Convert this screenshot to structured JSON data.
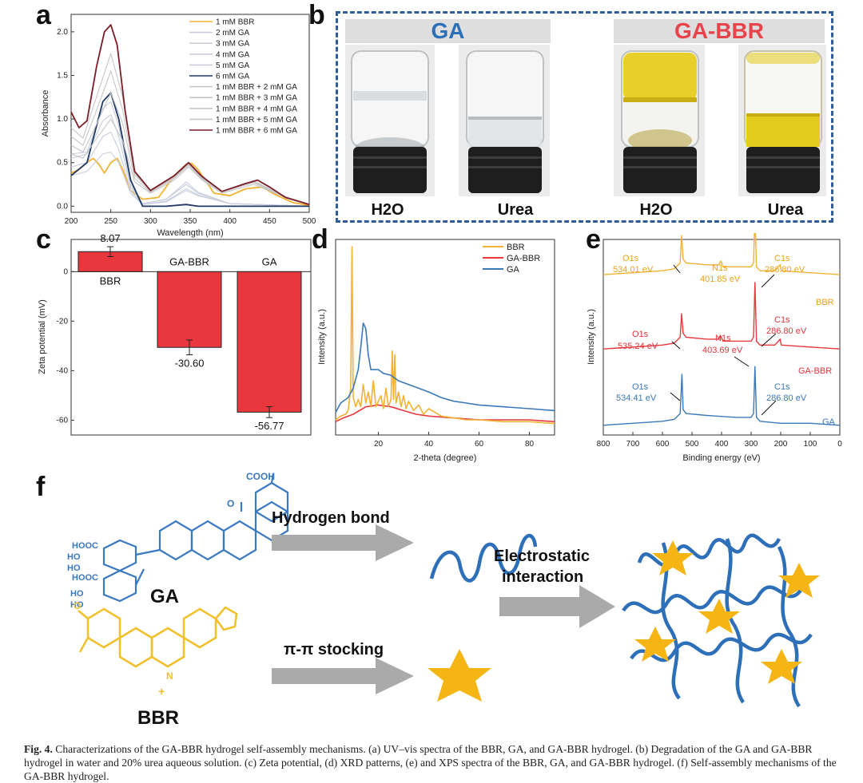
{
  "figure": {
    "caption_head": "Fig. 4.",
    "caption_text": " Characterizations of the GA-BBR hydrogel self-assembly mechanisms. (a) UV–vis spectra of the BBR, GA, and GA-BBR hydrogel. (b) Degradation of the GA and GA-BBR hydrogel in water and 20% urea aqueous solution. (c) Zeta potential, (d) XRD patterns, (e) and XPS spectra of the BBR, GA, and GA-BBR hydrogel. (f) Self-assembly mechanisms of the GA-BBR hydrogel."
  },
  "panels": {
    "a": {
      "label": "a"
    },
    "b": {
      "label": "b"
    },
    "c": {
      "label": "c"
    },
    "d": {
      "label": "d"
    },
    "e": {
      "label": "e"
    },
    "f": {
      "label": "f"
    }
  },
  "chart_data": [
    {
      "id": "a",
      "type": "line",
      "xlabel": "Wavelength (nm)",
      "ylabel": "Absorbance",
      "xlim": [
        200,
        500
      ],
      "ylim": [
        -0.07,
        2.2
      ],
      "xticks": [
        200,
        250,
        300,
        350,
        400,
        450,
        500
      ],
      "yticks": [
        0.0,
        0.5,
        1.0,
        1.5,
        2.0
      ],
      "yticklabels": [
        "0.0",
        "0.5",
        "1.0",
        "1.5",
        "2.0"
      ],
      "series": [
        {
          "name": "1 mM BBR",
          "color": "#f2b233"
        },
        {
          "name": "2 mM GA",
          "color": "#c9cedd"
        },
        {
          "name": "3 mM GA",
          "color": "#c9cedd"
        },
        {
          "name": "4 mM GA",
          "color": "#c9cedd"
        },
        {
          "name": "5 mM GA",
          "color": "#c9cedd"
        },
        {
          "name": "6 mM GA",
          "color": "#1f3864"
        },
        {
          "name": "1 mM BBR + 2 mM GA",
          "color": "#c7c7c7"
        },
        {
          "name": "1 mM BBR + 3 mM GA",
          "color": "#c7c7c7"
        },
        {
          "name": "1 mM BBR + 4 mM GA",
          "color": "#c7c7c7"
        },
        {
          "name": "1 mM BBR + 5 mM GA",
          "color": "#c7c7c7"
        },
        {
          "name": "1 mM BBR + 6 mM GA",
          "color": "#7b1c26"
        }
      ],
      "curves": [
        {
          "color": "#f2b233",
          "x": [
            200,
            210,
            220,
            228,
            235,
            242,
            250,
            258,
            265,
            275,
            290,
            310,
            330,
            345,
            352,
            360,
            380,
            400,
            420,
            440,
            460,
            480,
            500
          ],
          "y": [
            0.38,
            0.42,
            0.5,
            0.55,
            0.48,
            0.38,
            0.5,
            0.55,
            0.42,
            0.18,
            0.08,
            0.1,
            0.35,
            0.48,
            0.49,
            0.42,
            0.15,
            0.12,
            0.2,
            0.22,
            0.12,
            0.04,
            0.01
          ]
        },
        {
          "color": "#c9cedd",
          "x": [
            200,
            220,
            240,
            250,
            260,
            275,
            290,
            320,
            345,
            360,
            400,
            500
          ],
          "y": [
            0.35,
            0.4,
            0.6,
            0.62,
            0.5,
            0.15,
            0.02,
            0.05,
            0.18,
            0.12,
            0.03,
            0.0
          ]
        },
        {
          "color": "#c9cedd",
          "x": [
            200,
            220,
            240,
            250,
            260,
            275,
            290,
            320,
            345,
            360,
            400,
            500
          ],
          "y": [
            0.45,
            0.5,
            0.8,
            0.85,
            0.65,
            0.18,
            0.02,
            0.06,
            0.2,
            0.13,
            0.03,
            0.0
          ]
        },
        {
          "color": "#c9cedd",
          "x": [
            200,
            220,
            240,
            250,
            260,
            275,
            290,
            320,
            345,
            360,
            400,
            500
          ],
          "y": [
            0.55,
            0.6,
            0.98,
            1.05,
            0.8,
            0.22,
            0.03,
            0.08,
            0.25,
            0.15,
            0.03,
            0.0
          ]
        },
        {
          "color": "#c9cedd",
          "x": [
            200,
            220,
            240,
            250,
            260,
            275,
            290,
            320,
            345,
            360,
            400,
            500
          ],
          "y": [
            0.6,
            0.62,
            1.12,
            1.2,
            0.92,
            0.25,
            0.03,
            0.08,
            0.28,
            0.16,
            0.03,
            0.0
          ]
        },
        {
          "color": "#1f3864",
          "x": [
            200,
            220,
            240,
            250,
            260,
            275,
            290,
            320,
            345,
            360,
            400,
            500
          ],
          "y": [
            0.35,
            0.5,
            1.2,
            1.3,
            1.0,
            0.3,
            0.0,
            0.0,
            0.02,
            0.0,
            0.0,
            0.0
          ]
        },
        {
          "color": "#c7c7c7",
          "x": [
            200,
            215,
            230,
            250,
            265,
            280,
            300,
            330,
            348,
            365,
            390,
            430,
            470,
            500
          ],
          "y": [
            0.6,
            0.55,
            0.75,
            1.0,
            0.75,
            0.28,
            0.15,
            0.3,
            0.45,
            0.3,
            0.15,
            0.25,
            0.1,
            0.02
          ]
        },
        {
          "color": "#c7c7c7",
          "x": [
            200,
            215,
            230,
            250,
            265,
            280,
            300,
            330,
            348,
            365,
            390,
            430,
            470,
            500
          ],
          "y": [
            0.7,
            0.62,
            0.9,
            1.3,
            0.95,
            0.32,
            0.16,
            0.32,
            0.47,
            0.31,
            0.16,
            0.27,
            0.1,
            0.02
          ]
        },
        {
          "color": "#c7c7c7",
          "x": [
            200,
            215,
            230,
            250,
            265,
            280,
            300,
            330,
            348,
            365,
            390,
            430,
            470,
            500
          ],
          "y": [
            0.8,
            0.7,
            1.05,
            1.55,
            1.1,
            0.36,
            0.17,
            0.33,
            0.48,
            0.32,
            0.17,
            0.28,
            0.11,
            0.02
          ]
        },
        {
          "color": "#c7c7c7",
          "x": [
            200,
            215,
            230,
            250,
            265,
            280,
            300,
            330,
            348,
            365,
            390,
            430,
            470,
            500
          ],
          "y": [
            0.9,
            0.78,
            1.2,
            1.75,
            1.25,
            0.38,
            0.18,
            0.34,
            0.49,
            0.33,
            0.17,
            0.29,
            0.11,
            0.02
          ]
        },
        {
          "color": "#7b1c26",
          "x": [
            200,
            210,
            220,
            232,
            242,
            250,
            258,
            268,
            280,
            300,
            330,
            348,
            365,
            390,
            420,
            435,
            450,
            470,
            500
          ],
          "y": [
            1.08,
            0.9,
            0.98,
            1.6,
            2.0,
            2.08,
            1.85,
            1.1,
            0.4,
            0.18,
            0.35,
            0.5,
            0.34,
            0.17,
            0.26,
            0.3,
            0.22,
            0.1,
            0.02
          ]
        }
      ]
    },
    {
      "id": "c",
      "type": "bar",
      "ylabel": "Zeta potential (mV)",
      "categories": [
        "BBR",
        "GA-BBR",
        "GA"
      ],
      "values": [
        8.07,
        -30.6,
        -56.77
      ],
      "value_labels": [
        "8.07",
        "-30.60",
        "-56.77"
      ],
      "errors": [
        2.0,
        3.0,
        2.2
      ],
      "ylim": [
        -66,
        13
      ],
      "yticks": [
        0,
        -20,
        -40,
        -60
      ],
      "yticklabels": [
        "0",
        "-20",
        "-40",
        "-60"
      ],
      "color": "#e8383d"
    },
    {
      "id": "d",
      "type": "line",
      "xlabel": "2-theta (degree)",
      "ylabel": "Intensity (a.u.)",
      "xlim": [
        3,
        90
      ],
      "ylim": [
        0,
        1.0
      ],
      "xticks": [
        20,
        40,
        60,
        80
      ],
      "series": [
        {
          "name": "BBR",
          "color": "#f2b233"
        },
        {
          "name": "GA-BBR",
          "color": "#e8383d"
        },
        {
          "name": "GA",
          "color": "#3b78b8"
        }
      ],
      "curves": [
        {
          "color": "#e8383d",
          "x": [
            3,
            6,
            10,
            15,
            20,
            25,
            30,
            35,
            40,
            50,
            60,
            70,
            80,
            90
          ],
          "y": [
            0.02,
            0.04,
            0.06,
            0.1,
            0.11,
            0.1,
            0.08,
            0.06,
            0.05,
            0.04,
            0.03,
            0.03,
            0.03,
            0.02
          ]
        },
        {
          "color": "#f2b233",
          "x": [
            3,
            5,
            7,
            8,
            9,
            9.5,
            10,
            11,
            12,
            13,
            14,
            15,
            16,
            17,
            18,
            19,
            20,
            21,
            22,
            23,
            24,
            25,
            25.5,
            26,
            26.5,
            27,
            28,
            29,
            30,
            31,
            32,
            34,
            36,
            38,
            40,
            45,
            50,
            55,
            60,
            70,
            80,
            90
          ],
          "y": [
            0.03,
            0.05,
            0.06,
            0.08,
            0.2,
            0.96,
            0.15,
            0.1,
            0.14,
            0.1,
            0.22,
            0.12,
            0.18,
            0.1,
            0.24,
            0.1,
            0.13,
            0.16,
            0.09,
            0.2,
            0.1,
            0.14,
            0.4,
            0.14,
            0.38,
            0.12,
            0.18,
            0.1,
            0.16,
            0.09,
            0.13,
            0.08,
            0.11,
            0.06,
            0.09,
            0.05,
            0.04,
            0.03,
            0.03,
            0.02,
            0.02,
            0.01
          ]
        },
        {
          "color": "#3b78b8",
          "x": [
            3,
            5,
            8,
            10,
            12,
            13,
            14,
            15,
            16,
            17,
            18,
            20,
            22,
            25,
            28,
            32,
            36,
            40,
            45,
            50,
            55,
            60,
            70,
            80,
            90
          ],
          "y": [
            0.07,
            0.12,
            0.15,
            0.2,
            0.3,
            0.42,
            0.55,
            0.52,
            0.38,
            0.3,
            0.3,
            0.3,
            0.28,
            0.27,
            0.24,
            0.22,
            0.2,
            0.18,
            0.15,
            0.13,
            0.12,
            0.11,
            0.1,
            0.09,
            0.08
          ]
        }
      ]
    },
    {
      "id": "e",
      "type": "line",
      "xlabel": "Binding energy (eV)",
      "ylabel": "Intensity (a.u.)",
      "xlim": [
        800,
        0
      ],
      "ylim": [
        0,
        1
      ],
      "xticks": [
        800,
        700,
        600,
        500,
        400,
        300,
        200,
        100,
        0
      ],
      "series": [
        {
          "name": "BBR",
          "color": "#f2b233"
        },
        {
          "name": "GA-BBR",
          "color": "#e8383d"
        },
        {
          "name": "GA",
          "color": "#3b78b8"
        }
      ],
      "annotations": [
        {
          "series": "BBR",
          "lines": [
            "O1s",
            "534.01 eV",
            "N1s",
            "401.85 eV",
            "C1s",
            "286.80 eV"
          ]
        },
        {
          "series": "GA-BBR",
          "lines": [
            "O1s",
            "535.24 eV",
            "N1s",
            "403.69 eV",
            "C1s",
            "286.80 eV"
          ]
        },
        {
          "series": "GA",
          "lines": [
            "O1s",
            "534.41 eV",
            "C1s",
            "286.80 eV"
          ]
        }
      ],
      "curves": [
        {
          "color": "#f2b233",
          "baseline": 0.82,
          "x": [
            800,
            700,
            600,
            560,
            540,
            535,
            530,
            520,
            450,
            410,
            402,
            395,
            300,
            292,
            287,
            282,
            270,
            220,
            202,
            198,
            100,
            0
          ],
          "y": [
            0,
            0.01,
            0.02,
            0.03,
            0.06,
            0.2,
            0.08,
            0.06,
            0.05,
            0.05,
            0.07,
            0.04,
            0.04,
            0.06,
            0.3,
            0.04,
            0.02,
            0.02,
            0.05,
            0.02,
            0.01,
            0
          ]
        },
        {
          "color": "#e8383d",
          "baseline": 0.44,
          "x": [
            800,
            700,
            600,
            560,
            540,
            535,
            530,
            520,
            450,
            410,
            404,
            395,
            300,
            292,
            287,
            282,
            270,
            220,
            202,
            198,
            100,
            0
          ],
          "y": [
            0,
            0.01,
            0.02,
            0.03,
            0.06,
            0.18,
            0.08,
            0.06,
            0.05,
            0.05,
            0.07,
            0.04,
            0.04,
            0.06,
            0.34,
            0.04,
            0.02,
            0.02,
            0.05,
            0.02,
            0.01,
            0
          ]
        },
        {
          "color": "#3b78b8",
          "baseline": 0.05,
          "x": [
            800,
            700,
            600,
            560,
            540,
            534,
            530,
            520,
            450,
            350,
            300,
            292,
            287,
            282,
            270,
            200,
            100,
            0
          ],
          "y": [
            0,
            0.01,
            0.02,
            0.03,
            0.06,
            0.26,
            0.08,
            0.06,
            0.05,
            0.04,
            0.04,
            0.06,
            0.3,
            0.04,
            0.02,
            0.01,
            0.01,
            0
          ]
        }
      ]
    }
  ],
  "panel_b": {
    "ga_header": "GA",
    "gabbr_header": "GA-BBR",
    "vial_labels": [
      "H2O",
      "Urea",
      "H2O",
      "Urea"
    ],
    "ga_color": "#2b6fb6",
    "gabbr_color": "#e8434a"
  },
  "panel_f": {
    "hbond_label": "Hydrogen bond",
    "pipi_label": "π-π stocking",
    "electro_label_1": "Electrostatic",
    "electro_label_2": "interaction",
    "ga_name": "GA",
    "bbr_name": "BBR",
    "cooh_top": "COOH",
    "hooc_1": "HOOC",
    "hooc_2": "HOOC",
    "ho_labels": [
      "HO",
      "HO",
      "HO",
      "HO"
    ],
    "o_label": "O",
    "n_label": "N",
    "plus_label": "+",
    "ga_color": "#3a78c0",
    "bbr_color": "#f2c02a",
    "arrow_color": "#aaaaaa"
  }
}
